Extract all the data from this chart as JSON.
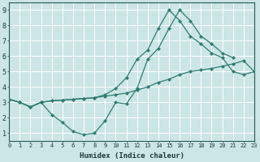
{
  "xlabel": "Humidex (Indice chaleur)",
  "xlim": [
    0,
    23
  ],
  "ylim": [
    0.5,
    9.5
  ],
  "xticks": [
    0,
    1,
    2,
    3,
    4,
    5,
    6,
    7,
    8,
    9,
    10,
    11,
    12,
    13,
    14,
    15,
    16,
    17,
    18,
    19,
    20,
    21,
    22,
    23
  ],
  "yticks": [
    1,
    2,
    3,
    4,
    5,
    6,
    7,
    8,
    9
  ],
  "background_color": "#cce5e5",
  "grid_color": "#ffffff",
  "line_color": "#2e7d72",
  "line1_x": [
    0,
    1,
    2,
    3,
    4,
    5,
    6,
    7,
    8,
    9,
    10,
    11,
    12,
    13,
    14,
    15,
    16,
    17,
    18,
    19,
    20,
    21
  ],
  "line1_y": [
    3.2,
    3.0,
    2.7,
    3.0,
    2.2,
    1.7,
    1.1,
    0.9,
    1.0,
    1.8,
    3.0,
    2.9,
    3.9,
    5.8,
    6.5,
    7.8,
    9.0,
    8.3,
    7.3,
    6.8,
    6.2,
    5.9
  ],
  "line2_x": [
    0,
    1,
    2,
    3,
    4,
    5,
    6,
    7,
    8,
    9,
    10,
    11,
    12,
    13,
    14,
    15,
    16,
    17,
    18,
    19,
    20,
    21,
    22,
    23
  ],
  "line2_y": [
    3.2,
    3.0,
    2.7,
    3.0,
    3.1,
    3.15,
    3.2,
    3.25,
    3.3,
    3.4,
    3.5,
    3.6,
    3.8,
    4.0,
    4.3,
    4.5,
    4.8,
    5.0,
    5.1,
    5.2,
    5.35,
    5.5,
    5.7,
    5.0
  ],
  "line3_x": [
    0,
    1,
    2,
    3,
    4,
    5,
    6,
    7,
    8,
    9,
    10,
    11,
    12,
    13,
    14,
    15,
    16,
    17,
    18,
    19,
    20,
    21,
    22,
    23
  ],
  "line3_y": [
    3.2,
    3.0,
    2.7,
    3.0,
    3.1,
    3.15,
    3.2,
    3.25,
    3.3,
    3.5,
    3.9,
    4.6,
    5.8,
    6.4,
    7.8,
    9.0,
    8.3,
    7.3,
    6.8,
    6.2,
    5.9,
    5.0,
    4.8,
    5.0
  ]
}
